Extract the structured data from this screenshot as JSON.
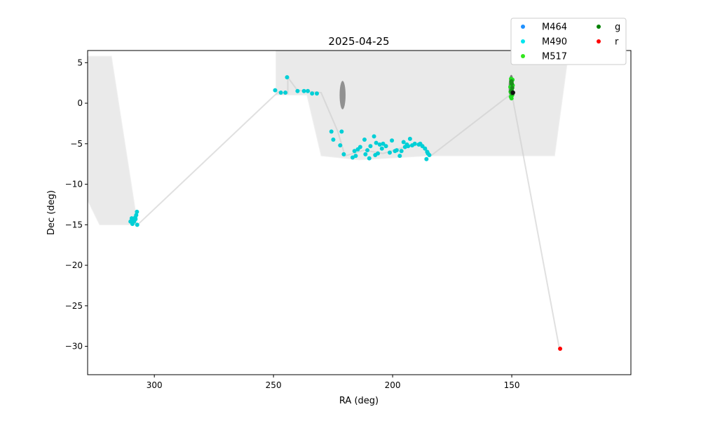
{
  "chart_data": {
    "type": "scatter",
    "title": "2025-04-25",
    "xlabel": "RA (deg)",
    "ylabel": "Dec (deg)",
    "xlim": [
      328,
      100
    ],
    "ylim": [
      -33.5,
      6.5
    ],
    "x_ticks": [
      300,
      250,
      200,
      150
    ],
    "x_tick_labels": [
      "300",
      "250",
      "200",
      "150"
    ],
    "y_ticks": [
      5,
      0,
      -5,
      -10,
      -15,
      -20,
      -25,
      -30
    ],
    "y_tick_labels": [
      "5",
      "0",
      "−5",
      "−10",
      "−15",
      "−20",
      "−25",
      "−30"
    ],
    "grid": false,
    "legend": {
      "placement": "top-right",
      "columns": 2,
      "entries": [
        {
          "label": "M464",
          "color": "#1e90ff"
        },
        {
          "label": "M490",
          "color": "#00e5ee"
        },
        {
          "label": "M517",
          "color": "#32e61e"
        },
        {
          "label": "g",
          "color": "#008000"
        },
        {
          "label": "r",
          "color": "#ff0000"
        }
      ]
    },
    "footprint_color": "#d9d9d9",
    "path_color": "#cccccc",
    "footprints": [
      [
        [
          328,
          5.8
        ],
        [
          318,
          5.8
        ],
        [
          307,
          -15
        ],
        [
          323,
          -15
        ],
        [
          328,
          -12
        ]
      ],
      [
        [
          249,
          6.5
        ],
        [
          126,
          6.5
        ],
        [
          132,
          -6.5
        ],
        [
          185,
          -6.5
        ],
        [
          214,
          -7
        ],
        [
          230,
          -6.5
        ],
        [
          236,
          1.0
        ],
        [
          249,
          1.0
        ]
      ]
    ],
    "dark_blobs": [
      {
        "ra": 221,
        "dec": 1.0,
        "w_ra": 2.5,
        "h_dec": 3.5,
        "color": "#555555"
      },
      {
        "ra": 150.2,
        "dec": 2.0,
        "w_ra": 2.2,
        "h_dec": 3.0,
        "color": "#333333"
      }
    ],
    "path": [
      [
        307,
        -15
      ],
      [
        248,
        1.4
      ],
      [
        244,
        1.2
      ],
      [
        244,
        3.2
      ],
      [
        240,
        1.6
      ],
      [
        230,
        1.3
      ],
      [
        223,
        -3.5
      ],
      [
        220,
        -6.5
      ],
      [
        212,
        -5.8
      ],
      [
        204,
        -6.2
      ],
      [
        196,
        -5.5
      ],
      [
        188,
        -5.1
      ],
      [
        184,
        -6.5
      ],
      [
        150,
        1.2
      ],
      [
        130,
        -30.3
      ]
    ],
    "series": [
      {
        "name": "M490",
        "color": "#00cfd6",
        "points": [
          [
            307.3,
            -13.4
          ],
          [
            307.6,
            -13.8
          ],
          [
            307.9,
            -14.3
          ],
          [
            308.5,
            -14.6
          ],
          [
            309.2,
            -14.9
          ],
          [
            307.2,
            -15.0
          ],
          [
            309.5,
            -14.2
          ],
          [
            310.0,
            -14.6
          ],
          [
            308.0,
            -14.1
          ],
          [
            308.8,
            -14.4
          ],
          [
            249.3,
            1.6
          ],
          [
            246.9,
            1.3
          ],
          [
            245.0,
            1.3
          ],
          [
            244.3,
            3.2
          ],
          [
            239.9,
            1.5
          ],
          [
            237.2,
            1.5
          ],
          [
            235.6,
            1.5
          ],
          [
            233.8,
            1.2
          ],
          [
            231.8,
            1.2
          ],
          [
            225.7,
            -3.5
          ],
          [
            224.9,
            -4.5
          ],
          [
            222.0,
            -5.2
          ],
          [
            221.4,
            -3.5
          ],
          [
            220.5,
            -6.3
          ],
          [
            216.8,
            -6.7
          ],
          [
            216.0,
            -5.9
          ],
          [
            215.5,
            -6.5
          ],
          [
            214.6,
            -5.7
          ],
          [
            213.6,
            -5.4
          ],
          [
            211.8,
            -4.5
          ],
          [
            211.4,
            -6.3
          ],
          [
            210.6,
            -5.8
          ],
          [
            209.8,
            -6.8
          ],
          [
            209.3,
            -5.3
          ],
          [
            207.8,
            -4.1
          ],
          [
            207.3,
            -6.4
          ],
          [
            206.9,
            -4.9
          ],
          [
            206.2,
            -6.2
          ],
          [
            205.4,
            -5.1
          ],
          [
            204.5,
            -5.6
          ],
          [
            204.0,
            -5.0
          ],
          [
            202.8,
            -5.3
          ],
          [
            201.2,
            -6.1
          ],
          [
            200.3,
            -4.6
          ],
          [
            199.0,
            -5.9
          ],
          [
            198.3,
            -5.8
          ],
          [
            197.0,
            -6.5
          ],
          [
            196.3,
            -5.9
          ],
          [
            195.4,
            -4.8
          ],
          [
            194.8,
            -5.4
          ],
          [
            194.0,
            -5.1
          ],
          [
            193.5,
            -5.3
          ],
          [
            192.7,
            -4.4
          ],
          [
            191.8,
            -5.2
          ],
          [
            190.7,
            -5.0
          ],
          [
            189.0,
            -5.1
          ],
          [
            188.4,
            -5.0
          ],
          [
            187.5,
            -5.3
          ],
          [
            186.4,
            -5.6
          ],
          [
            185.5,
            -6.0
          ],
          [
            185.8,
            -6.9
          ],
          [
            185.2,
            -6.2
          ],
          [
            184.6,
            -6.4
          ]
        ]
      },
      {
        "name": "M517",
        "color": "#22dd22",
        "points": [
          [
            150.5,
            1.4
          ],
          [
            150.0,
            1.7
          ],
          [
            149.6,
            2.2
          ],
          [
            150.2,
            2.6
          ],
          [
            150.4,
            0.8
          ],
          [
            149.8,
            1.0
          ],
          [
            150.6,
            2.0
          ],
          [
            149.7,
            2.9
          ],
          [
            150.1,
            0.6
          ],
          [
            150.3,
            3.0
          ]
        ]
      },
      {
        "name": "g",
        "color": "#1a8f1a",
        "points": [
          [
            150.0,
            2.4
          ],
          [
            149.8,
            1.9
          ],
          [
            150.2,
            1.5
          ],
          [
            150.1,
            2.7
          ],
          [
            149.9,
            1.2
          ]
        ]
      },
      {
        "name": "r",
        "color": "#ff0000",
        "points": [
          [
            129.7,
            -30.3
          ]
        ]
      }
    ],
    "highlight_point": {
      "ra": 149.5,
      "dec": 1.3,
      "color": "#111111"
    }
  }
}
